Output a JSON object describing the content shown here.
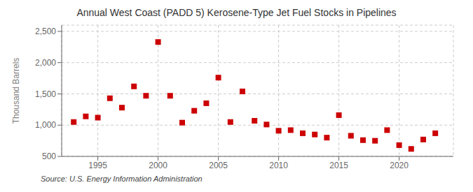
{
  "chart_data": {
    "type": "scatter",
    "title": "Annual West Coast (PADD 5) Kerosene-Type Jet Fuel Stocks in Pipelines",
    "ylabel": "Thousand Barrels",
    "annotation": "Source: U.S. Energy Information Administration",
    "x": [
      1993,
      1994,
      1995,
      1996,
      1997,
      1998,
      1999,
      2000,
      2001,
      2002,
      2003,
      2004,
      2005,
      2006,
      2007,
      2008,
      2009,
      2010,
      2011,
      2012,
      2013,
      2014,
      2015,
      2016,
      2017,
      2018,
      2019,
      2020,
      2021,
      2022,
      2023
    ],
    "values": [
      1050,
      1140,
      1120,
      1430,
      1280,
      1620,
      1470,
      2330,
      1470,
      1040,
      1230,
      1350,
      1760,
      1050,
      1540,
      1070,
      1010,
      910,
      920,
      870,
      850,
      800,
      1160,
      830,
      760,
      750,
      920,
      680,
      620,
      770,
      870
    ],
    "color": "#cc0000",
    "marker": "square",
    "xlim": [
      1992,
      2024.5
    ],
    "xticks": [
      1995,
      2000,
      2005,
      2010,
      2015,
      2020
    ],
    "ylim": [
      500,
      2600
    ],
    "yticks": [
      {
        "value": 500,
        "label": "500"
      },
      {
        "value": 1000,
        "label": "1,000"
      },
      {
        "value": 1500,
        "label": "1,500"
      },
      {
        "value": 2000,
        "label": "2,000"
      },
      {
        "value": 2500,
        "label": "2,500"
      }
    ],
    "grid": true
  }
}
